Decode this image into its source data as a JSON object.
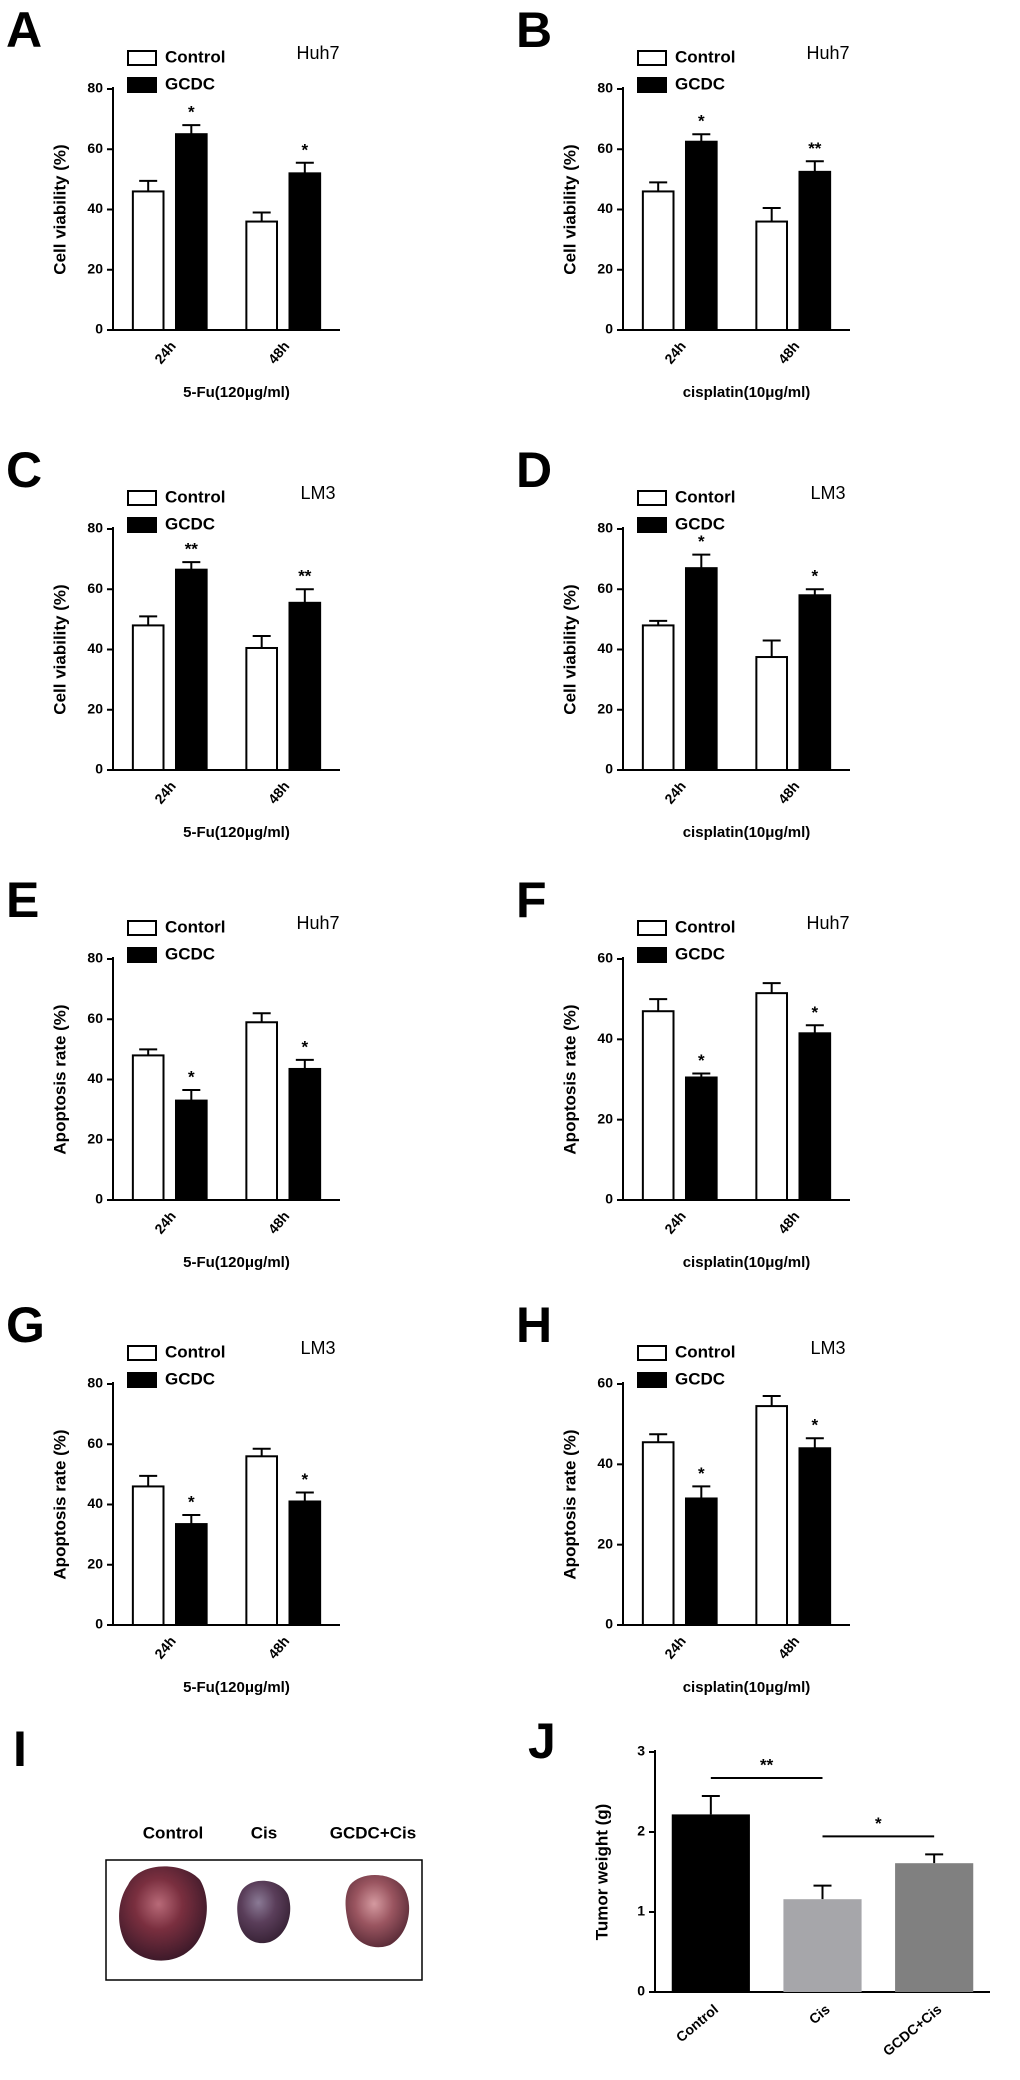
{
  "chart_data": [
    {
      "type": "bar",
      "panel": "A",
      "title": "Huh7",
      "ylabel": "Cell viability (%)",
      "xlabel": "5-Fu(120μg/ml)",
      "categories": [
        "24h",
        "48h"
      ],
      "series": [
        {
          "name": "Control",
          "color": "#ffffff",
          "values": [
            46,
            36
          ],
          "errors": [
            3.5,
            3
          ]
        },
        {
          "name": "GCDC",
          "color": "#000000",
          "values": [
            65,
            52
          ],
          "errors": [
            3,
            3.5
          ],
          "significance": [
            "*",
            "*"
          ]
        }
      ],
      "ylim": [
        0,
        80
      ],
      "yticks": [
        0,
        20,
        40,
        60,
        80
      ]
    },
    {
      "type": "bar",
      "panel": "B",
      "title": "Huh7",
      "ylabel": "Cell viability (%)",
      "xlabel": "cisplatin(10μg/ml)",
      "categories": [
        "24h",
        "48h"
      ],
      "series": [
        {
          "name": "Control",
          "color": "#ffffff",
          "values": [
            46,
            36
          ],
          "errors": [
            3,
            4.5
          ]
        },
        {
          "name": "GCDC",
          "color": "#000000",
          "values": [
            62.5,
            52.5
          ],
          "errors": [
            2.5,
            3.5
          ],
          "significance": [
            "*",
            "**"
          ]
        }
      ],
      "ylim": [
        0,
        80
      ],
      "yticks": [
        0,
        20,
        40,
        60,
        80
      ]
    },
    {
      "type": "bar",
      "panel": "C",
      "title": "LM3",
      "ylabel": "Cell viability (%)",
      "xlabel": "5-Fu(120μg/ml)",
      "categories": [
        "24h",
        "48h"
      ],
      "series": [
        {
          "name": "Control",
          "color": "#ffffff",
          "values": [
            48,
            40.5
          ],
          "errors": [
            3,
            4
          ]
        },
        {
          "name": "GCDC",
          "color": "#000000",
          "values": [
            66.5,
            55.5
          ],
          "errors": [
            2.5,
            4.5
          ],
          "significance": [
            "**",
            "**"
          ]
        }
      ],
      "ylim": [
        0,
        80
      ],
      "yticks": [
        0,
        20,
        40,
        60,
        80
      ]
    },
    {
      "type": "bar",
      "panel": "D",
      "title": "LM3",
      "ylabel": "Cell viability (%)",
      "xlabel": "cisplatin(10μg/ml)",
      "categories": [
        "24h",
        "48h"
      ],
      "series": [
        {
          "name": "Contorl",
          "color": "#ffffff",
          "values": [
            48,
            37.5
          ],
          "errors": [
            1.5,
            5.5
          ]
        },
        {
          "name": "GCDC",
          "color": "#000000",
          "values": [
            67,
            58
          ],
          "errors": [
            4.5,
            2
          ],
          "significance": [
            "*",
            "*"
          ]
        }
      ],
      "ylim": [
        0,
        80
      ],
      "yticks": [
        0,
        20,
        40,
        60,
        80
      ]
    },
    {
      "type": "bar",
      "panel": "E",
      "title": "Huh7",
      "ylabel": "Apoptosis rate (%)",
      "xlabel": "5-Fu(120μg/ml)",
      "categories": [
        "24h",
        "48h"
      ],
      "series": [
        {
          "name": "Contorl",
          "color": "#ffffff",
          "values": [
            48,
            59
          ],
          "errors": [
            2,
            3
          ]
        },
        {
          "name": "GCDC",
          "color": "#000000",
          "values": [
            33,
            43.5
          ],
          "errors": [
            3.5,
            3
          ],
          "significance": [
            "*",
            "*"
          ]
        }
      ],
      "ylim": [
        0,
        80
      ],
      "yticks": [
        0,
        20,
        40,
        60,
        80
      ]
    },
    {
      "type": "bar",
      "panel": "F",
      "title": "Huh7",
      "ylabel": "Apoptosis rate (%)",
      "xlabel": "cisplatin(10μg/ml)",
      "categories": [
        "24h",
        "48h"
      ],
      "series": [
        {
          "name": "Control",
          "color": "#ffffff",
          "values": [
            47,
            51.5
          ],
          "errors": [
            3,
            2.5
          ]
        },
        {
          "name": "GCDC",
          "color": "#000000",
          "values": [
            30.5,
            41.5
          ],
          "errors": [
            1,
            2
          ],
          "significance": [
            "*",
            "*"
          ]
        }
      ],
      "ylim": [
        0,
        60
      ],
      "yticks": [
        0,
        20,
        40,
        60
      ]
    },
    {
      "type": "bar",
      "panel": "G",
      "title": "LM3",
      "ylabel": "Apoptosis rate (%)",
      "xlabel": "5-Fu(120μg/ml)",
      "categories": [
        "24h",
        "48h"
      ],
      "series": [
        {
          "name": "Control",
          "color": "#ffffff",
          "values": [
            46,
            56
          ],
          "errors": [
            3.5,
            2.5
          ]
        },
        {
          "name": "GCDC",
          "color": "#000000",
          "values": [
            33.5,
            41
          ],
          "errors": [
            3,
            3
          ],
          "significance": [
            "*",
            "*"
          ]
        }
      ],
      "ylim": [
        0,
        80
      ],
      "yticks": [
        0,
        20,
        40,
        60,
        80
      ]
    },
    {
      "type": "bar",
      "panel": "H",
      "title": "LM3",
      "ylabel": "Apoptosis rate (%)",
      "xlabel": "cisplatin(10μg/ml)",
      "categories": [
        "24h",
        "48h"
      ],
      "series": [
        {
          "name": "Control",
          "color": "#ffffff",
          "values": [
            45.5,
            54.5
          ],
          "errors": [
            2,
            2.5
          ]
        },
        {
          "name": "GCDC",
          "color": "#000000",
          "values": [
            31.5,
            44
          ],
          "errors": [
            3,
            2.5
          ],
          "significance": [
            "*",
            "*"
          ]
        }
      ],
      "ylim": [
        0,
        60
      ],
      "yticks": [
        0,
        20,
        40,
        60
      ]
    },
    {
      "type": "single-bar",
      "panel": "J",
      "ylabel": "Tumor weight (g)",
      "categories": [
        "Control",
        "Cis",
        "GCDC+Cis"
      ],
      "values": [
        2.22,
        1.16,
        1.61
      ],
      "errors": [
        0.23,
        0.17,
        0.11
      ],
      "colors": [
        "#000000",
        "#a6a6aa",
        "#808080"
      ],
      "comparisons": [
        {
          "from": 0,
          "to": 1,
          "label": "**"
        },
        {
          "from": 1,
          "to": 2,
          "label": "*"
        }
      ],
      "ylim": [
        0,
        3
      ],
      "yticks": [
        0,
        1,
        2,
        3
      ]
    }
  ],
  "photo": {
    "panel": "I",
    "labels": [
      "Control",
      "Cis",
      "GCDC+Cis"
    ]
  }
}
